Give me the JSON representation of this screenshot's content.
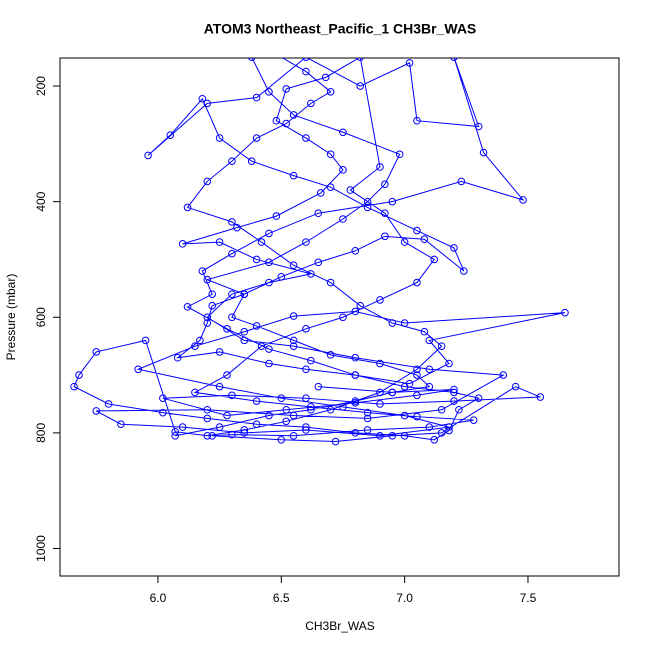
{
  "chart_data": {
    "type": "line",
    "title": "ATOM3 Northeast_Pacific_1 CH3Br_WAS",
    "x_label": "CH3Br_WAS",
    "y_label": "Pressure (mbar)",
    "color": "#0000ff",
    "markers": "open-circle",
    "xlim": [
      5.603,
      7.869
    ],
    "ylim": [
      1047.6,
      151.5
    ],
    "xticks": [
      {
        "value": 6,
        "label": "6.0"
      },
      {
        "value": 6.5,
        "label": "6.5"
      },
      {
        "value": 7,
        "label": "7.0"
      },
      {
        "value": 7.5,
        "label": "7.5"
      }
    ],
    "yticks": [
      200,
      400,
      600,
      800,
      1000
    ],
    "x": [
      6.07,
      6.25,
      6.45,
      6.62,
      6.8,
      6.95,
      7.1,
      7.05,
      6.9,
      6.7,
      6.55,
      6.4,
      6.3,
      6.35,
      6.2,
      6.45,
      6.6,
      6.75,
      6.85,
      6.92,
      6.98,
      6.75,
      6.55,
      6.45,
      6.38,
      6.48,
      6.6,
      6.7,
      6.62,
      6.52,
      6.4,
      6.3,
      6.2,
      6.12,
      6.3,
      6.42,
      6.55,
      6.7,
      6.82,
      6.95,
      7.08,
      7.15,
      7.05,
      6.9,
      6.7,
      6.52,
      6.35,
      6.2,
      6.07,
      5.95,
      5.75,
      5.68,
      5.66,
      5.8,
      6.02,
      6.2,
      6.4,
      6.6,
      6.8,
      7.0,
      7.12,
      7.18,
      7.22,
      7.3,
      7.2,
      7.0,
      6.8,
      6.6,
      6.45,
      6.25,
      6.08,
      6.17,
      6.2,
      6.22,
      6.35,
      6.5,
      6.65,
      6.8,
      6.92,
      7.08,
      7.24,
      7.2,
      7.05,
      6.85,
      6.7,
      6.55,
      6.38,
      6.25,
      6.18,
      6.05,
      5.96,
      6.2,
      6.4,
      6.6,
      6.82,
      7.02,
      7.05,
      7.3,
      7.2,
      7.32,
      7.48,
      7.23,
      6.95,
      6.65,
      6.45,
      6.3,
      6.18,
      6.22,
      6.12,
      6.28,
      6.45,
      6.62,
      6.8,
      7.02,
      7.18,
      7.1,
      7.65,
      7.0,
      6.8,
      6.55,
      6.35,
      6.15,
      5.92,
      6.25,
      6.5,
      6.75,
      7.0,
      7.18,
      6.9,
      6.6,
      6.35,
      6.1,
      5.85,
      5.75,
      6.2,
      6.55,
      6.85,
      7.15,
      7.4,
      7.1,
      6.8,
      6.55,
      6.35,
      6.2,
      6.3,
      6.45,
      6.62,
      6.4,
      6.25,
      6.1,
      6.32,
      6.48,
      6.66,
      6.75,
      6.7,
      6.6,
      6.48,
      6.52,
      6.68,
      6.82,
      6.9,
      6.78,
      6.92,
      7.0,
      7.12,
      7.05,
      6.9,
      6.75,
      6.6,
      6.42,
      6.28,
      6.15,
      6.4,
      6.62,
      6.85,
      7.05,
      7.28,
      7.1,
      6.85,
      6.55,
      6.3,
      6.22,
      6.5,
      6.72,
      6.95,
      7.15,
      7.45,
      7.55,
      7.2,
      6.9,
      6.6,
      6.3,
      6.02,
      6.28,
      6.52,
      6.8,
      7.05,
      7.2,
      6.95,
      6.65
    ],
    "values": [
      805,
      790,
      770,
      760,
      745,
      730,
      720,
      700,
      680,
      665,
      640,
      615,
      600,
      560,
      535,
      505,
      470,
      430,
      400,
      370,
      318,
      280,
      250,
      210,
      150,
      145,
      175,
      210,
      230,
      265,
      290,
      330,
      365,
      410,
      435,
      470,
      510,
      540,
      580,
      610,
      625,
      650,
      690,
      730,
      760,
      780,
      795,
      805,
      798,
      640,
      660,
      700,
      720,
      750,
      765,
      775,
      785,
      790,
      800,
      805,
      812,
      796,
      760,
      740,
      730,
      720,
      700,
      690,
      680,
      660,
      670,
      640,
      610,
      580,
      560,
      530,
      505,
      485,
      460,
      465,
      520,
      480,
      450,
      410,
      375,
      355,
      330,
      290,
      222,
      285,
      320,
      230,
      220,
      150,
      200,
      160,
      260,
      270,
      150,
      315,
      397,
      365,
      400,
      420,
      455,
      490,
      520,
      560,
      582,
      620,
      655,
      675,
      700,
      715,
      680,
      640,
      592,
      610,
      590,
      598,
      625,
      650,
      690,
      720,
      740,
      755,
      770,
      790,
      805,
      795,
      800,
      790,
      785,
      762,
      760,
      770,
      775,
      760,
      700,
      690,
      670,
      650,
      640,
      600,
      560,
      540,
      525,
      500,
      470,
      473,
      445,
      425,
      385,
      345,
      318,
      290,
      260,
      205,
      185,
      150,
      340,
      380,
      420,
      470,
      500,
      540,
      570,
      600,
      620,
      650,
      700,
      730,
      745,
      755,
      765,
      772,
      778,
      790,
      795,
      805,
      803,
      805,
      812,
      815,
      805,
      800,
      720,
      738,
      745,
      750,
      740,
      735,
      740,
      770,
      760,
      748,
      735,
      725,
      730,
      720
    ]
  }
}
